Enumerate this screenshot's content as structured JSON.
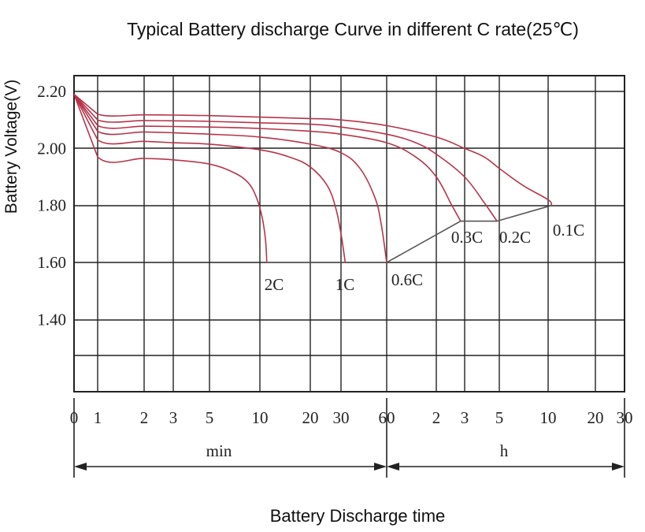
{
  "chart_data": {
    "type": "line",
    "title": "Typical Battery discharge Curve in different C rate(25℃)",
    "ylabel": "Battery Voltage(V)",
    "xlabel": "Battery Discharge time",
    "ylim": [
      1.2,
      2.22
    ],
    "yticks": [
      "2.20",
      "2.00",
      "1.80",
      "1.60",
      "1.40"
    ],
    "ytick_values": [
      2.2,
      2.0,
      1.8,
      1.6,
      1.4
    ],
    "xticks_min": [
      "0",
      "1",
      "2",
      "3",
      "5",
      "10",
      "20",
      "30",
      "60"
    ],
    "xticks_h": [
      "2",
      "3",
      "5",
      "10",
      "20",
      "30"
    ],
    "x_unit_min": "min",
    "x_unit_h": "h",
    "grid": true,
    "end_voltage_line_label": "",
    "series": [
      {
        "name": "2C",
        "x_min": [
          0,
          1,
          2,
          3,
          5,
          7,
          8.5,
          9.5,
          10.3,
          10.8,
          11
        ],
        "y": [
          2.19,
          1.97,
          1.965,
          1.96,
          1.945,
          1.915,
          1.88,
          1.83,
          1.76,
          1.68,
          1.6
        ]
      },
      {
        "name": "1C",
        "x_min": [
          0,
          1,
          2,
          3,
          5,
          10,
          15,
          20,
          25,
          28,
          30,
          32
        ],
        "y": [
          2.19,
          2.03,
          2.025,
          2.02,
          2.015,
          1.995,
          1.97,
          1.935,
          1.87,
          1.79,
          1.7,
          1.6
        ]
      },
      {
        "name": "0.6C",
        "x_min": [
          0,
          1,
          2,
          3,
          5,
          10,
          20,
          30,
          40,
          50,
          55,
          60
        ],
        "y": [
          2.19,
          2.06,
          2.058,
          2.055,
          2.05,
          2.04,
          2.015,
          1.985,
          1.93,
          1.83,
          1.74,
          1.6
        ]
      },
      {
        "name": "0.3C",
        "x_min": [
          0,
          1,
          2,
          3,
          5,
          10,
          20,
          30,
          60,
          90,
          120,
          150,
          170
        ],
        "y": [
          2.19,
          2.08,
          2.078,
          2.077,
          2.075,
          2.07,
          2.06,
          2.05,
          2.02,
          1.97,
          1.9,
          1.8,
          1.745
        ]
      },
      {
        "name": "0.2C",
        "x_min": [
          0,
          1,
          2,
          3,
          5,
          10,
          20,
          30,
          60,
          90,
          120,
          180,
          240,
          290
        ],
        "y": [
          2.19,
          2.1,
          2.098,
          2.097,
          2.095,
          2.09,
          2.085,
          2.075,
          2.05,
          2.02,
          1.98,
          1.9,
          1.81,
          1.745
        ]
      },
      {
        "name": "0.1C",
        "x_min": [
          0,
          1,
          2,
          3,
          5,
          10,
          20,
          30,
          60,
          120,
          180,
          240,
          300,
          420,
          600,
          630
        ],
        "y": [
          2.19,
          2.12,
          2.118,
          2.117,
          2.115,
          2.11,
          2.105,
          2.1,
          2.08,
          2.04,
          2.0,
          1.97,
          1.93,
          1.87,
          1.82,
          1.8
        ]
      }
    ],
    "end_voltage": [
      {
        "rate": "2C",
        "x_min": 11,
        "y": 1.6
      },
      {
        "rate": "1C",
        "x_min": 32,
        "y": 1.6
      },
      {
        "rate": "0.6C",
        "x_min": 60,
        "y": 1.6
      },
      {
        "rate": "0.3C",
        "x_min": 170,
        "y": 1.745
      },
      {
        "rate": "0.2C",
        "x_min": 290,
        "y": 1.745
      },
      {
        "rate": "0.1C",
        "x_min": 630,
        "y": 1.8
      }
    ],
    "colors": {
      "curves": "#b7344a",
      "cutoff": "#555555",
      "grid": "#222222",
      "text": "#222222"
    }
  }
}
